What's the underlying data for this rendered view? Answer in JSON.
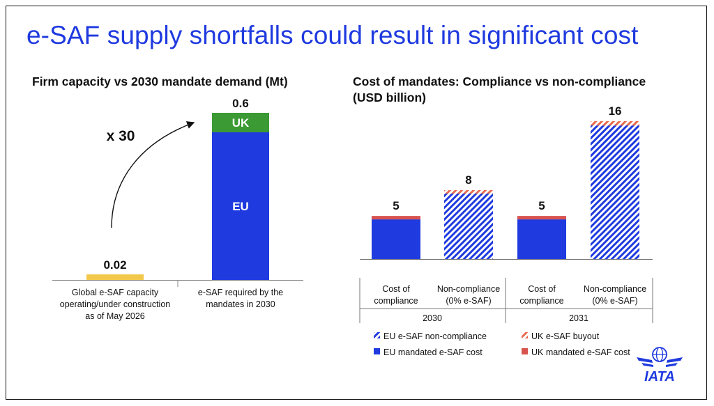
{
  "slide": {
    "title": "e-SAF supply shortfalls could result in significant cost"
  },
  "chart_data": [
    {
      "type": "bar",
      "title": "Firm capacity vs 2030 mandate demand (Mt)",
      "categories": [
        [
          "Global e-SAF capacity",
          "operating/under construction",
          "as of May 2026"
        ],
        [
          "e-SAF required by the",
          "mandates in 2030"
        ]
      ],
      "series": [
        {
          "name": "EU",
          "values": [
            0,
            0.53
          ]
        },
        {
          "name": "UK",
          "values": [
            0,
            0.07
          ]
        }
      ],
      "bar_values": [
        0.02,
        0.6
      ],
      "totals": [
        "0.02",
        "0.6"
      ],
      "annotation": "x 30",
      "colors": {
        "capacity": "#f2c84b",
        "EU": "#1f3adf",
        "UK": "#3b9a34"
      },
      "ylim": [
        0,
        0.6
      ]
    },
    {
      "type": "bar",
      "title": [
        "Cost of mandates: Compliance vs non-compliance",
        "(USD billion)"
      ],
      "groups": [
        "2030",
        "2031"
      ],
      "categories": [
        [
          "Cost of",
          "compliance"
        ],
        [
          "Non-compliance",
          "(0% e-SAF)"
        ],
        [
          "Cost of",
          "compliance"
        ],
        [
          "Non-compliance",
          "(0% e-SAF)"
        ]
      ],
      "series": [
        {
          "name": "EU mandated e-SAF cost",
          "values": [
            4.6,
            0,
            4.6,
            0
          ],
          "style": "solid",
          "color": "#1f3adf"
        },
        {
          "name": "UK mandated e-SAF cost",
          "values": [
            0.4,
            0,
            0.4,
            0
          ],
          "style": "solid",
          "color": "#d9534f"
        },
        {
          "name": "EU e-SAF non-compliance",
          "values": [
            0,
            7.6,
            0,
            15.5
          ],
          "style": "hatched",
          "color": "#1f3adf"
        },
        {
          "name": "UK e-SAF buyout",
          "values": [
            0,
            0.4,
            0,
            0.5
          ],
          "style": "hatched",
          "color": "#e86a4e"
        }
      ],
      "totals": [
        "5",
        "8",
        "5",
        "16"
      ],
      "legend": [
        {
          "label": "EU e-SAF non-compliance",
          "style": "hatched",
          "color": "#1f3adf"
        },
        {
          "label": "UK e-SAF buyout",
          "style": "hatched",
          "color": "#e86a4e"
        },
        {
          "label": "EU mandated e-SAF cost",
          "style": "solid",
          "color": "#1f3adf"
        },
        {
          "label": "UK mandated e-SAF cost",
          "style": "solid",
          "color": "#d9534f"
        }
      ],
      "legend_position": "bottom",
      "ylim": [
        0,
        16
      ]
    }
  ],
  "logo": {
    "text": "IATA",
    "color": "#1f3adf"
  }
}
